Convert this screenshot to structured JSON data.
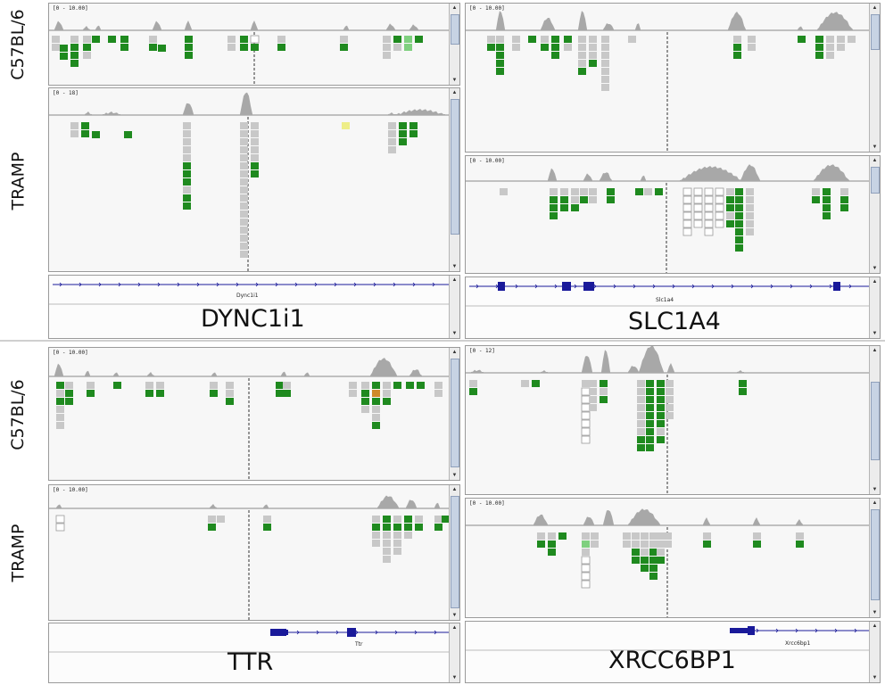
{
  "rows": {
    "c57": "C57BL/6",
    "tramp": "TRAMP"
  },
  "panels": [
    {
      "id": "p1",
      "range": "[0 - 10.00]"
    },
    {
      "id": "p2",
      "range": "[0 - 18]"
    },
    {
      "id": "p3",
      "range": "[0 - 10.00]"
    },
    {
      "id": "p4",
      "range": "[0 - 10.00]"
    },
    {
      "id": "p5",
      "range": "[0 - 10.00]"
    },
    {
      "id": "p6",
      "range": "[0 - 10.00]"
    },
    {
      "id": "p7",
      "range": "[0 - 12]"
    },
    {
      "id": "p8",
      "range": "[0 - 10.00]"
    }
  ],
  "genes": [
    {
      "id": "g1",
      "name": "DYNC1i1",
      "track_label": "Dync1i1"
    },
    {
      "id": "g2",
      "name": "SLC1A4",
      "track_label": "Slc1a4"
    },
    {
      "id": "g3",
      "name": "TTR",
      "track_label": "Ttr"
    },
    {
      "id": "g4",
      "name": "XRCC6BP1",
      "track_label": "Xrcc6bp1"
    }
  ],
  "colors": {
    "read_gray": "#c8c8c8",
    "read_green": "#1f8a1f",
    "read_light_green": "#7fd07f",
    "read_orange": "#d08a2a",
    "coverage": "#a8a8a8",
    "gene_blue": "#1a1a9a",
    "panel_bg": "#f7f7f7"
  }
}
